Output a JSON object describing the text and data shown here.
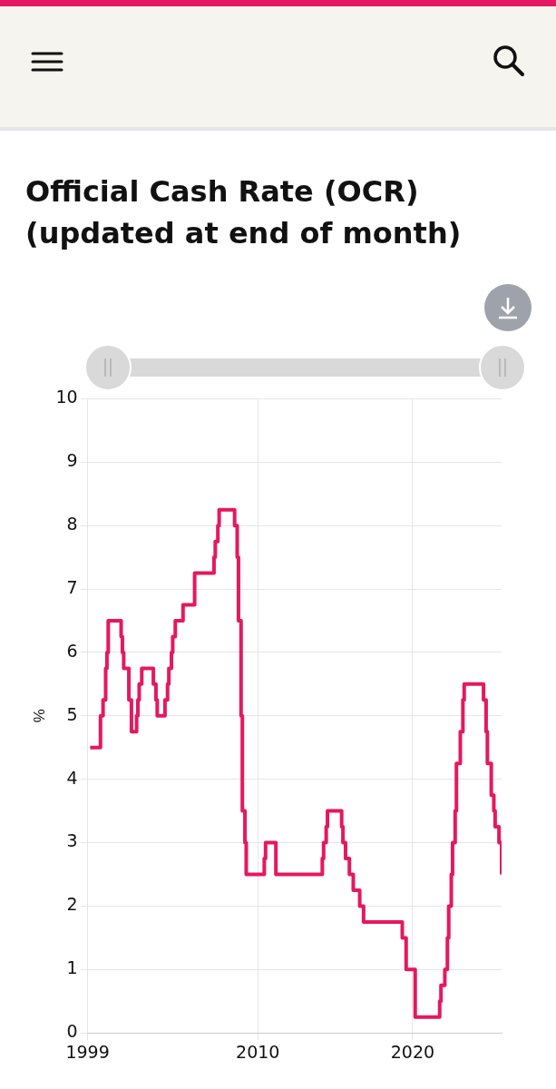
{
  "chart_data": {
    "type": "step",
    "title": "Official Cash Rate (OCR) (updated at end of month)",
    "ylabel": "%",
    "x": [
      "1999-03",
      "1999-11",
      "2000-01",
      "2000-03",
      "2000-04",
      "2000-05",
      "2001-03",
      "2001-04",
      "2001-05",
      "2001-09",
      "2001-11",
      "2002-03",
      "2002-04",
      "2002-05",
      "2002-07",
      "2003-04",
      "2003-06",
      "2003-07",
      "2004-01",
      "2004-03",
      "2004-04",
      "2004-06",
      "2004-07",
      "2004-09",
      "2005-03",
      "2005-12",
      "2007-03",
      "2007-04",
      "2007-06",
      "2007-07",
      "2008-07",
      "2008-09",
      "2008-10",
      "2008-12",
      "2009-01",
      "2009-03",
      "2009-04",
      "2010-06",
      "2010-07",
      "2011-03",
      "2014-03",
      "2014-04",
      "2014-06",
      "2014-07",
      "2015-06",
      "2015-07",
      "2015-09",
      "2015-12",
      "2016-03",
      "2016-08",
      "2016-11",
      "2019-05",
      "2019-08",
      "2020-03",
      "2021-10",
      "2021-11",
      "2022-02",
      "2022-04",
      "2022-05",
      "2022-07",
      "2022-08",
      "2022-10",
      "2022-11",
      "2023-02",
      "2023-04",
      "2023-05",
      "2024-08",
      "2024-10",
      "2024-11",
      "2025-02",
      "2025-04",
      "2025-05",
      "2025-08",
      "2025-10"
    ],
    "series": [
      {
        "color": "#e5185f",
        "values": [
          4.5,
          5,
          5.25,
          5.75,
          6,
          6.5,
          6.25,
          6,
          5.75,
          5.25,
          4.75,
          5,
          5.25,
          5.5,
          5.75,
          5.5,
          5.25,
          5,
          5.25,
          5.5,
          5.75,
          6,
          6.25,
          6.5,
          6.75,
          7.25,
          7.5,
          7.75,
          8,
          8.25,
          8,
          7.5,
          6.5,
          5,
          3.5,
          3,
          2.5,
          2.75,
          3,
          2.5,
          2.75,
          3,
          3.25,
          3.5,
          3.25,
          3,
          2.75,
          2.5,
          2.25,
          2,
          1.75,
          1.5,
          1,
          0.25,
          0.5,
          0.75,
          1,
          1.5,
          2,
          2.5,
          3,
          3.5,
          4.25,
          4.75,
          5.25,
          5.5,
          5.25,
          4.75,
          4.25,
          3.75,
          3.5,
          3.25,
          3,
          2.5
        ]
      }
    ],
    "xlim": [
      "1999-01",
      "2025-10"
    ],
    "xticks": [
      {
        "value": "1999",
        "label": "1999"
      },
      {
        "value": "2010",
        "label": "2010"
      },
      {
        "value": "2020",
        "label": "2020"
      }
    ],
    "ylim": [
      0,
      10
    ],
    "yticks": [
      0,
      1,
      2,
      3,
      4,
      5,
      6,
      7,
      8,
      9,
      10
    ],
    "grid": true,
    "legend": false,
    "line_style": "solid",
    "marker": "none"
  }
}
